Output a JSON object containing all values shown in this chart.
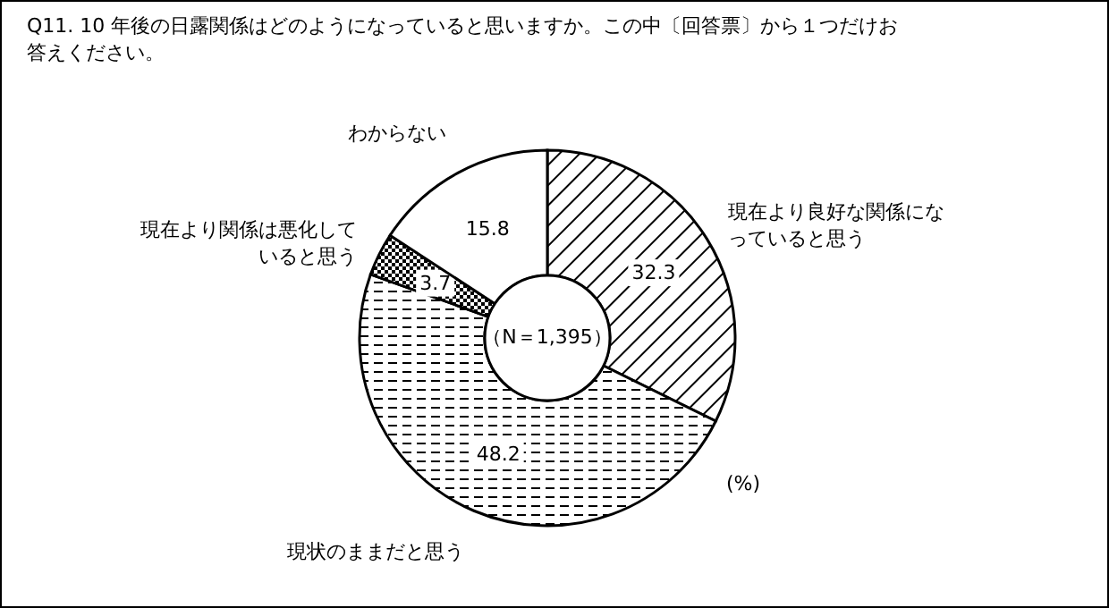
{
  "chart_data": {
    "type": "donut",
    "title": "Q11. 10 年後の日露関係はどのようになっていると思いますか。この中〔回答票〕から１つだけお答えください。",
    "categories": [
      "現在より良好な関係になっていると思う",
      "現状のままだと思う",
      "現在より関係は悪化していると思う",
      "わからない"
    ],
    "values": [
      32.3,
      48.2,
      3.7,
      15.8
    ],
    "data_labels": true,
    "annotations": [
      "（N＝1,395）",
      "(%)"
    ]
  }
}
